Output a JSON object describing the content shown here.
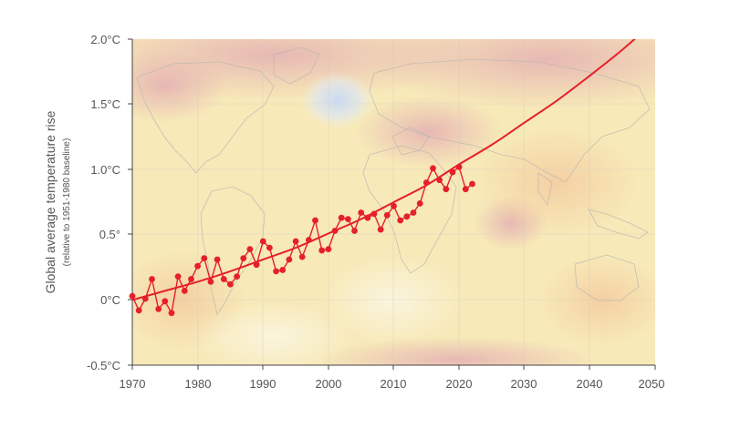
{
  "chart_data": {
    "type": "line",
    "title": "",
    "ylabel": "Global average temperature rise",
    "ylabel_sub": "(relative to 1951-1980 baseline)",
    "xlabel": "",
    "xlim": [
      1970,
      2050
    ],
    "ylim": [
      -0.5,
      2.0
    ],
    "x_ticks": [
      "1970",
      "1980",
      "1990",
      "2000",
      "2010",
      "2020",
      "2030",
      "2040",
      "2050"
    ],
    "y_ticks": [
      "-0.5°C",
      "0°C",
      "0.5°",
      "1.0°C",
      "1.5°C",
      "2.0°C"
    ],
    "y_tick_values": [
      -0.5,
      0,
      0.5,
      1.0,
      1.5,
      2.0
    ],
    "x_tick_values": [
      1970,
      1980,
      1990,
      2000,
      2010,
      2020,
      2030,
      2040,
      2050
    ],
    "grid": true,
    "background": "world temperature anomaly map",
    "series": [
      {
        "kind": "observed",
        "color": "#e5202a",
        "x": [
          1970,
          1971,
          1972,
          1973,
          1974,
          1975,
          1976,
          1977,
          1978,
          1979,
          1980,
          1981,
          1982,
          1983,
          1984,
          1985,
          1986,
          1987,
          1988,
          1989,
          1990,
          1991,
          1992,
          1993,
          1994,
          1995,
          1996,
          1997,
          1998,
          1999,
          2000,
          2001,
          2002,
          2003,
          2004,
          2005,
          2006,
          2007,
          2008,
          2009,
          2010,
          2011,
          2012,
          2013,
          2014,
          2015,
          2016,
          2017,
          2018,
          2019,
          2020,
          2021,
          2022
        ],
        "y": [
          0.03,
          -0.08,
          0.01,
          0.16,
          -0.07,
          -0.01,
          -0.1,
          0.18,
          0.07,
          0.16,
          0.26,
          0.32,
          0.14,
          0.31,
          0.16,
          0.12,
          0.18,
          0.32,
          0.39,
          0.27,
          0.45,
          0.4,
          0.22,
          0.23,
          0.31,
          0.45,
          0.33,
          0.46,
          0.61,
          0.38,
          0.39,
          0.53,
          0.63,
          0.62,
          0.53,
          0.67,
          0.63,
          0.66,
          0.54,
          0.65,
          0.72,
          0.61,
          0.64,
          0.67,
          0.74,
          0.9,
          1.01,
          0.92,
          0.85,
          0.98,
          1.02,
          0.85,
          0.89
        ]
      },
      {
        "kind": "trend",
        "color": "#e5202a",
        "x": [
          1970,
          1975,
          1980,
          1985,
          1990,
          1995,
          2000,
          2005,
          2010,
          2015,
          2020,
          2025,
          2030,
          2035,
          2040,
          2045,
          2050
        ],
        "y": [
          0.0,
          0.07,
          0.14,
          0.22,
          0.31,
          0.4,
          0.51,
          0.62,
          0.75,
          0.88,
          1.04,
          1.19,
          1.36,
          1.53,
          1.72,
          1.92,
          2.14
        ]
      }
    ]
  }
}
